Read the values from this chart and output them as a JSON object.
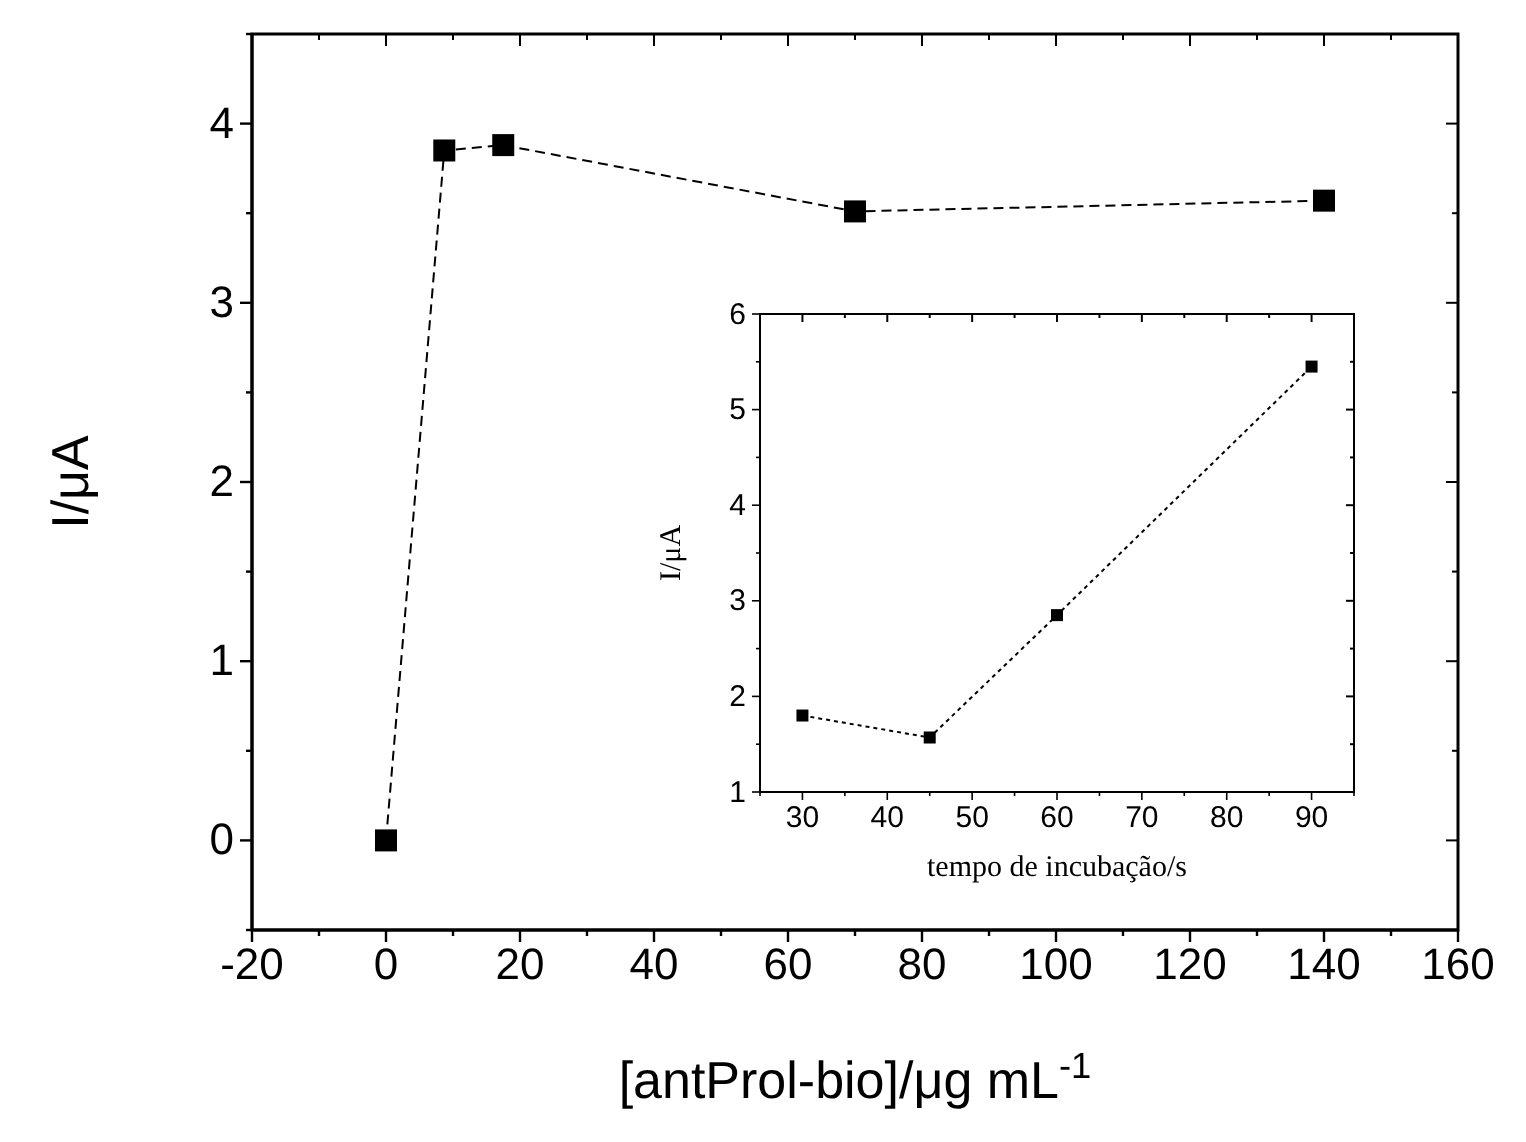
{
  "chart_data": [
    {
      "type": "line",
      "xlabel": "[antProl-bio]/μg mL$^{-1}$",
      "ylabel": "I/μA",
      "x": [
        0,
        8.7,
        17.5,
        70,
        140
      ],
      "series": [
        {
          "color": "#000000",
          "values": [
            0,
            3.85,
            3.88,
            3.51,
            3.57
          ]
        }
      ],
      "xlim": [
        -20,
        160
      ],
      "xticks": [
        -20,
        {
          "value": -10,
          "label": null
        },
        0,
        {
          "value": 10,
          "label": null
        },
        20,
        {
          "value": 30,
          "label": null
        },
        40,
        {
          "value": 50,
          "label": null
        },
        60,
        {
          "value": 70,
          "label": null
        },
        80,
        {
          "value": 90,
          "label": null
        },
        100,
        {
          "value": 110,
          "label": null
        },
        120,
        {
          "value": 130,
          "label": null
        },
        140,
        {
          "value": 150,
          "label": null
        },
        160
      ],
      "ylim": [
        -0.5,
        4.5
      ],
      "yticks": [
        {
          "value": -0.5,
          "label": null
        },
        0,
        {
          "value": 0.5,
          "label": null
        },
        1,
        {
          "value": 1.5,
          "label": null
        },
        2,
        {
          "value": 2.5,
          "label": null
        },
        3,
        {
          "value": 3.5,
          "label": null
        },
        4,
        {
          "value": 4.5,
          "label": null
        }
      ],
      "marker": "square",
      "line_style": "dashed",
      "grid": false
    },
    {
      "type": "line",
      "xlabel": "tempo de incubação/s",
      "ylabel": "I/μA",
      "x": [
        30,
        45,
        60,
        90
      ],
      "series": [
        {
          "color": "#000000",
          "values": [
            1.8,
            1.57,
            2.85,
            5.45
          ]
        }
      ],
      "xlim": [
        25,
        95
      ],
      "xticks": [
        {
          "value": 25,
          "label": null
        },
        30,
        {
          "value": 35,
          "label": null
        },
        40,
        {
          "value": 45,
          "label": null
        },
        50,
        {
          "value": 55,
          "label": null
        },
        60,
        {
          "value": 65,
          "label": null
        },
        70,
        {
          "value": 75,
          "label": null
        },
        80,
        {
          "value": 85,
          "label": null
        },
        90,
        {
          "value": 95,
          "label": null
        }
      ],
      "ylim": [
        1,
        6
      ],
      "yticks": [
        1,
        {
          "value": 1.5,
          "label": null
        },
        2,
        {
          "value": 2.5,
          "label": null
        },
        3,
        {
          "value": 3.5,
          "label": null
        },
        4,
        {
          "value": 4.5,
          "label": null
        },
        5,
        {
          "value": 5.5,
          "label": null
        },
        6
      ],
      "marker": "square",
      "line_style": "dotted",
      "grid": false
    }
  ]
}
